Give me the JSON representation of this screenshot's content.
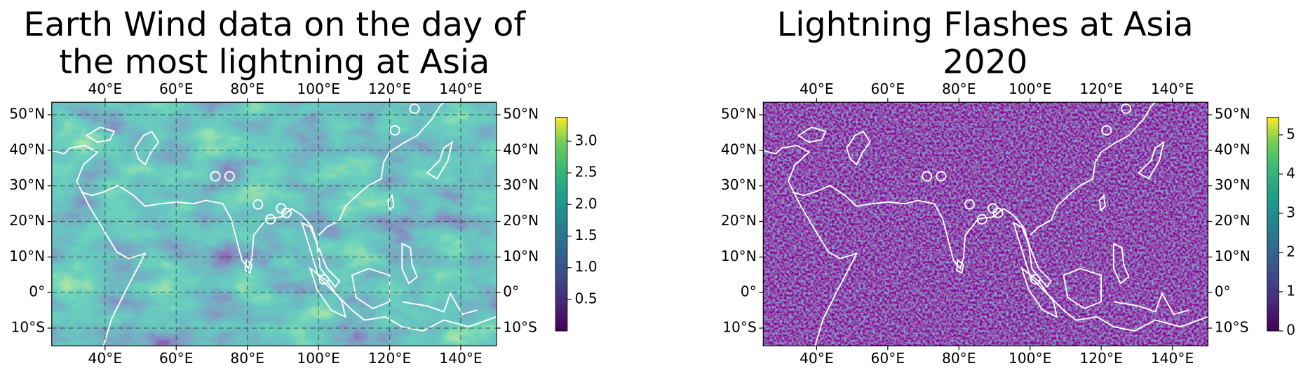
{
  "chart_data": [
    {
      "type": "map",
      "title_lines": [
        "Earth Wind data on the day of",
        "the most lightning at Asia"
      ],
      "xlim": [
        25,
        150
      ],
      "ylim": [
        -15,
        53.5
      ],
      "xticks": [
        {
          "value": 40,
          "label": "40°E"
        },
        {
          "value": 60,
          "label": "60°E"
        },
        {
          "value": 80,
          "label": "80°E"
        },
        {
          "value": 100,
          "label": "100°E"
        },
        {
          "value": 120,
          "label": "120°E"
        },
        {
          "value": 140,
          "label": "140°E"
        }
      ],
      "yticks": [
        {
          "value": -10,
          "label": "10°S"
        },
        {
          "value": 0,
          "label": "0°"
        },
        {
          "value": 10,
          "label": "10°N"
        },
        {
          "value": 20,
          "label": "20°N"
        },
        {
          "value": 30,
          "label": "30°N"
        },
        {
          "value": 40,
          "label": "40°N"
        },
        {
          "value": 50,
          "label": "50°N"
        }
      ],
      "grid": true,
      "points": {
        "x": [
          71,
          75,
          83,
          86.5,
          89.5,
          91,
          101.5,
          121.5,
          127
        ],
        "y": [
          32.7,
          32.7,
          24.8,
          20.6,
          23.7,
          22.4,
          3.7,
          45.6,
          51.7
        ]
      },
      "colorbar": {
        "colormap": "viridis",
        "clim": [
          0,
          3.38
        ],
        "ticks": [
          0.5,
          {
            "value": 1,
            "label": "1.0"
          },
          1.5,
          {
            "value": 2,
            "label": "2.0"
          },
          2.5,
          {
            "value": 3,
            "label": "3.0"
          }
        ]
      }
    },
    {
      "type": "map",
      "title_lines": [
        "Lightning Flashes at Asia",
        "2020"
      ],
      "xlim": [
        25,
        150
      ],
      "ylim": [
        -15,
        53.5
      ],
      "xticks": [
        {
          "value": 40,
          "label": "40°E"
        },
        {
          "value": 60,
          "label": "60°E"
        },
        {
          "value": 80,
          "label": "80°E"
        },
        {
          "value": 100,
          "label": "100°E"
        },
        {
          "value": 120,
          "label": "120°E"
        },
        {
          "value": 140,
          "label": "140°E"
        }
      ],
      "yticks": [
        {
          "value": -10,
          "label": "10°S"
        },
        {
          "value": 0,
          "label": "0°"
        },
        {
          "value": 10,
          "label": "10°N"
        },
        {
          "value": 20,
          "label": "20°N"
        },
        {
          "value": 30,
          "label": "30°N"
        },
        {
          "value": 40,
          "label": "40°N"
        },
        {
          "value": 50,
          "label": "50°N"
        }
      ],
      "grid": false,
      "points": {
        "x": [
          71,
          75,
          83,
          86.5,
          89.5,
          91,
          101.5,
          121.5,
          127
        ],
        "y": [
          32.7,
          32.7,
          24.8,
          20.6,
          23.7,
          22.4,
          3.7,
          45.6,
          51.7
        ]
      },
      "colorbar": {
        "colormap": "viridis",
        "clim": [
          0,
          5.45
        ],
        "ticks": [
          0,
          1,
          2,
          3,
          4,
          5
        ]
      }
    }
  ]
}
